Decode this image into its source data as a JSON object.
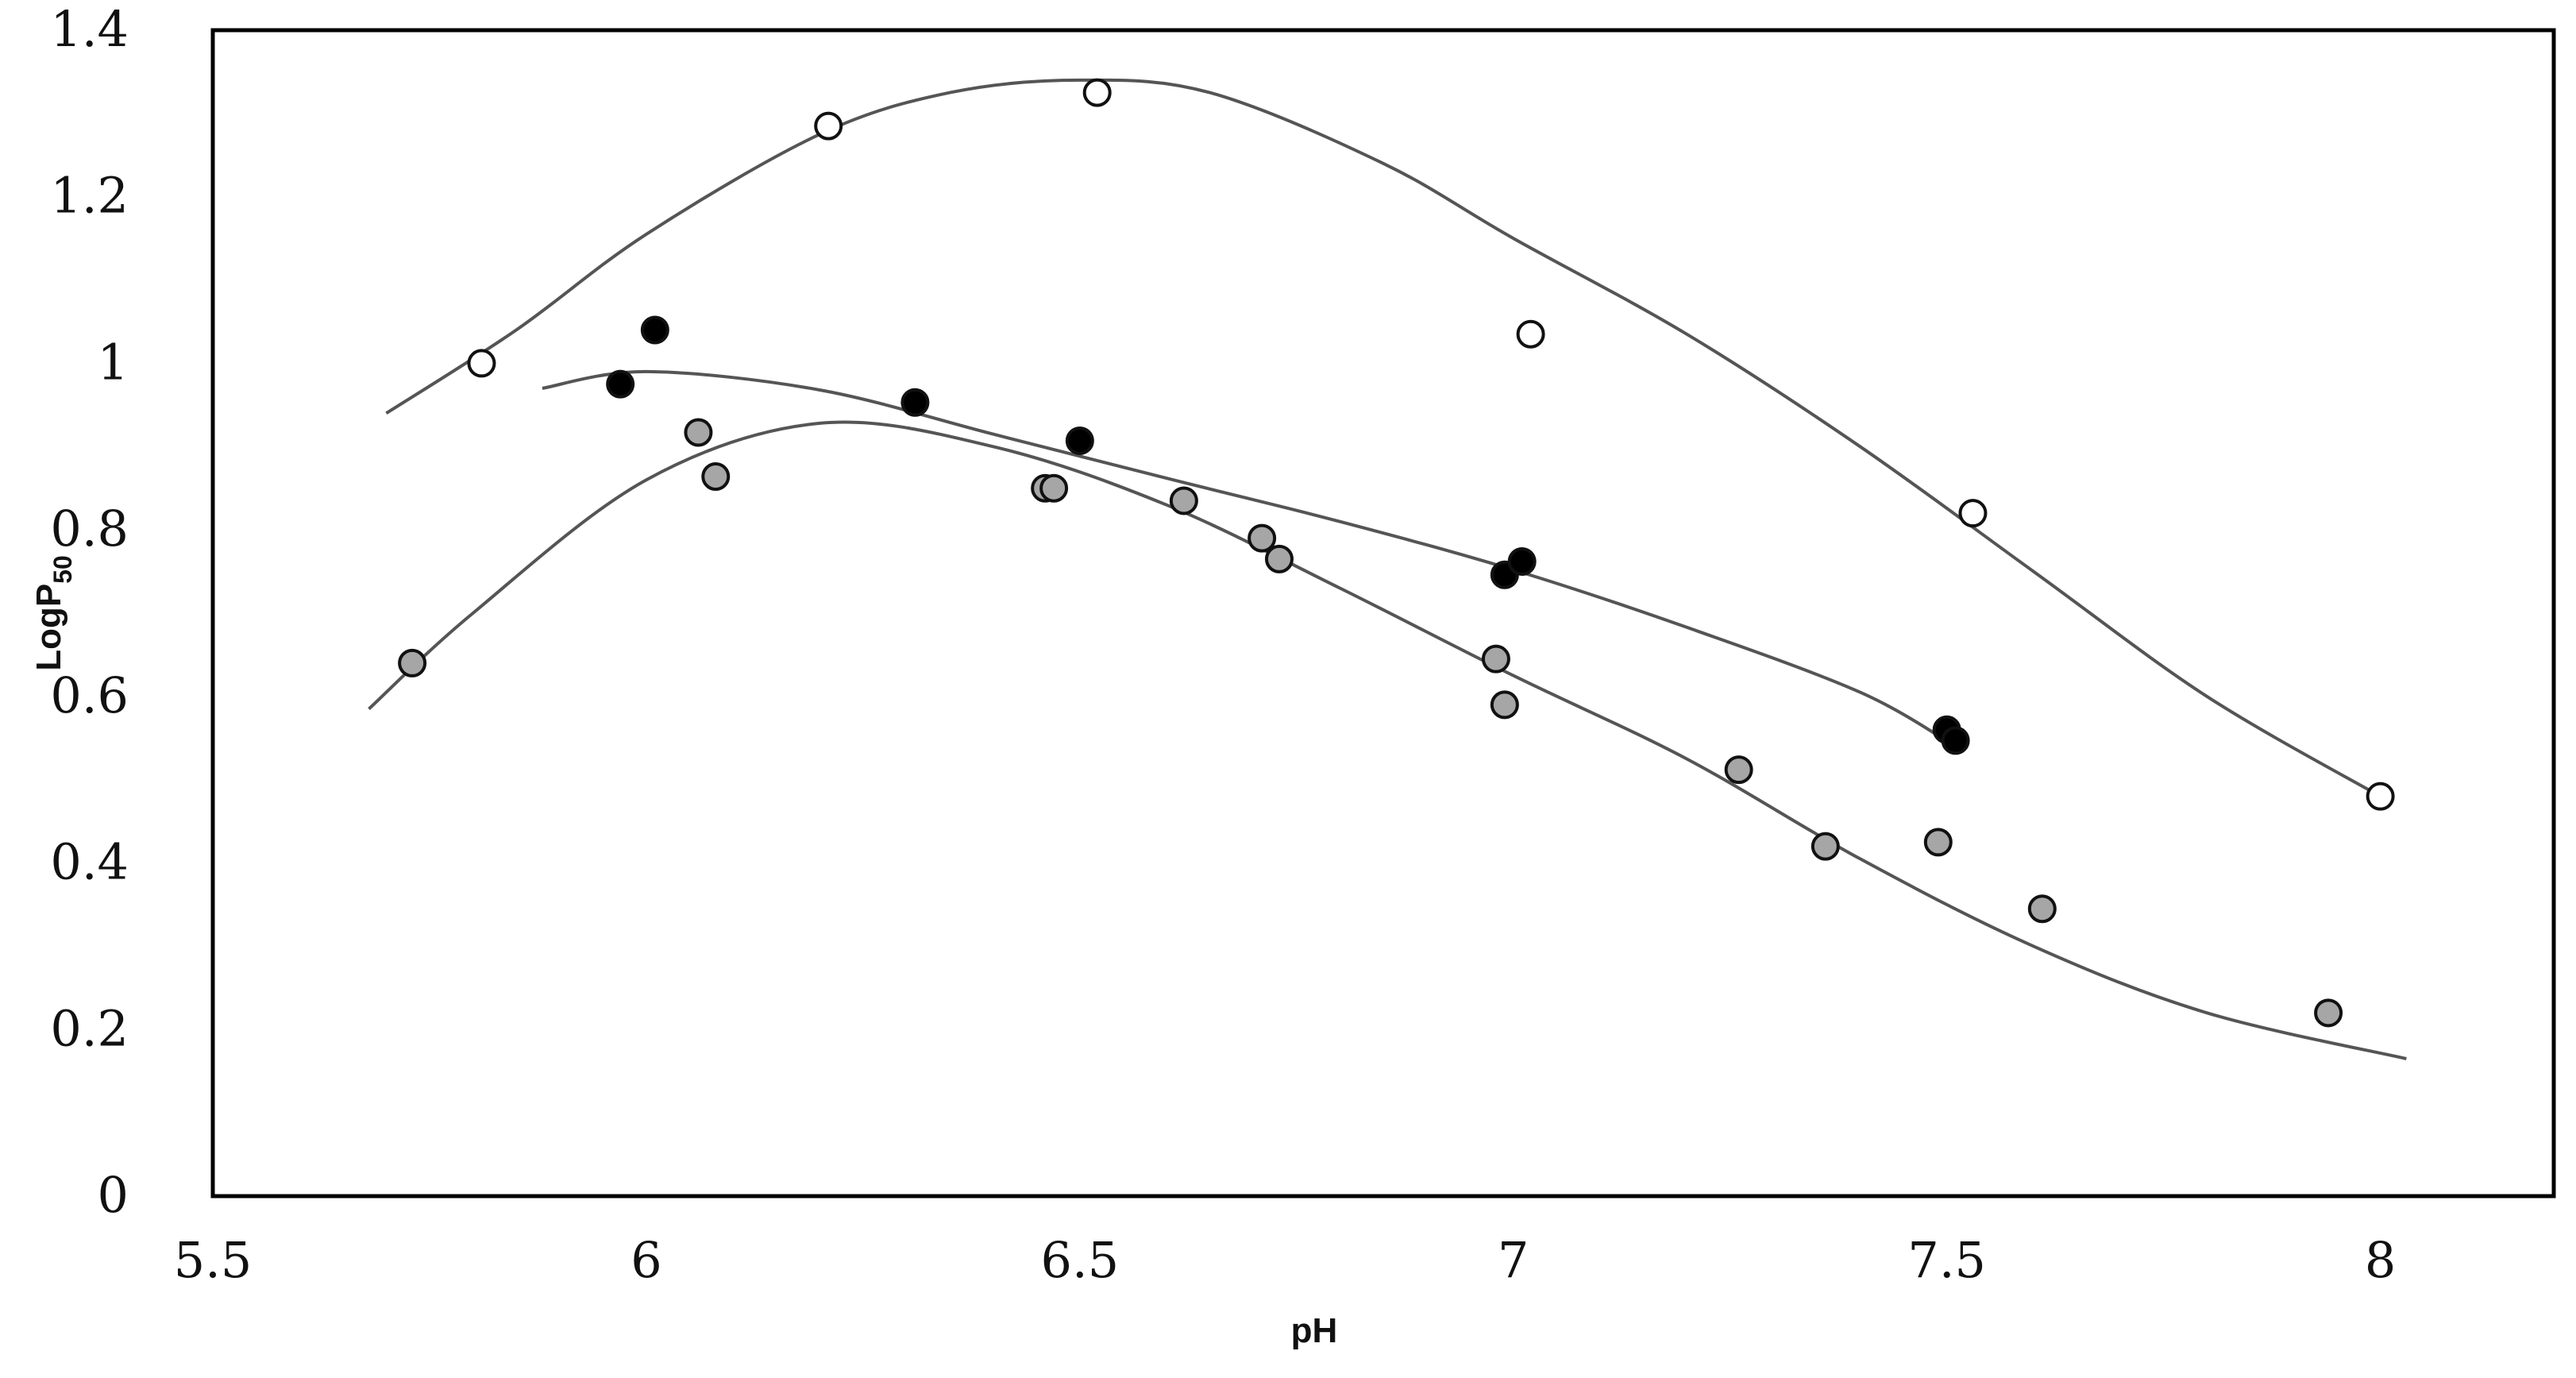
{
  "chart_data": {
    "type": "scatter",
    "title": "",
    "xlabel": "pH",
    "ylabel": "LogP",
    "ylabel_subscript": "50",
    "xlim": [
      5.5,
      8.2
    ],
    "ylim": [
      0,
      1.4
    ],
    "x_ticks": [
      {
        "value": 5.5,
        "label": "5.5"
      },
      {
        "value": 6,
        "label": "6"
      },
      {
        "value": 6.5,
        "label": "6.5"
      },
      {
        "value": 7,
        "label": "7"
      },
      {
        "value": 7.5,
        "label": "7.5"
      },
      {
        "value": 8,
        "label": "8"
      }
    ],
    "y_ticks": [
      {
        "value": 0,
        "label": "0"
      },
      {
        "value": 0.2,
        "label": "0.2"
      },
      {
        "value": 0.4,
        "label": "0.4"
      },
      {
        "value": 0.6,
        "label": "0.6"
      },
      {
        "value": 0.8,
        "label": "0.8"
      },
      {
        "value": 1,
        "label": "1"
      },
      {
        "value": 1.2,
        "label": "1.2"
      },
      {
        "value": 1.4,
        "label": "1.4"
      }
    ],
    "grid": false,
    "legend": "none",
    "series": [
      {
        "marker": "open-circle",
        "fill": "#ffffff",
        "points": [
          [
            5.81,
            1.0
          ],
          [
            6.21,
            1.285
          ],
          [
            6.52,
            1.325
          ],
          [
            7.02,
            1.035
          ],
          [
            7.53,
            0.82
          ],
          [
            8.0,
            0.48
          ]
        ],
        "curve": [
          [
            5.7,
            0.94
          ],
          [
            5.85,
            1.04
          ],
          [
            6.0,
            1.155
          ],
          [
            6.2,
            1.275
          ],
          [
            6.35,
            1.325
          ],
          [
            6.5,
            1.34
          ],
          [
            6.65,
            1.325
          ],
          [
            6.85,
            1.24
          ],
          [
            7.0,
            1.15
          ],
          [
            7.2,
            1.035
          ],
          [
            7.4,
            0.9
          ],
          [
            7.6,
            0.75
          ],
          [
            7.8,
            0.6
          ],
          [
            8.0,
            0.48
          ]
        ]
      },
      {
        "marker": "filled-circle",
        "fill": "#000000",
        "points": [
          [
            5.97,
            0.975
          ],
          [
            6.01,
            1.04
          ],
          [
            6.31,
            0.953
          ],
          [
            6.5,
            0.907
          ],
          [
            6.99,
            0.746
          ],
          [
            7.01,
            0.762
          ],
          [
            7.5,
            0.56
          ],
          [
            7.51,
            0.547
          ]
        ],
        "curve": [
          [
            5.88,
            0.97
          ],
          [
            6.0,
            0.99
          ],
          [
            6.2,
            0.968
          ],
          [
            6.4,
            0.915
          ],
          [
            6.6,
            0.862
          ],
          [
            6.8,
            0.81
          ],
          [
            7.0,
            0.752
          ],
          [
            7.2,
            0.683
          ],
          [
            7.4,
            0.605
          ],
          [
            7.51,
            0.54
          ]
        ]
      },
      {
        "marker": "grey-circle",
        "fill": "#a6a6a6",
        "points": [
          [
            5.73,
            0.64
          ],
          [
            6.06,
            0.917
          ],
          [
            6.08,
            0.864
          ],
          [
            6.46,
            0.85
          ],
          [
            6.47,
            0.85
          ],
          [
            6.62,
            0.835
          ],
          [
            6.71,
            0.79
          ],
          [
            6.73,
            0.765
          ],
          [
            6.98,
            0.645
          ],
          [
            6.99,
            0.59
          ],
          [
            7.26,
            0.512
          ],
          [
            7.36,
            0.42
          ],
          [
            7.49,
            0.425
          ],
          [
            7.61,
            0.345
          ],
          [
            7.94,
            0.22
          ]
        ],
        "curve": [
          [
            5.68,
            0.585
          ],
          [
            5.8,
            0.7
          ],
          [
            6.0,
            0.86
          ],
          [
            6.2,
            0.928
          ],
          [
            6.4,
            0.9
          ],
          [
            6.6,
            0.83
          ],
          [
            6.8,
            0.73
          ],
          [
            7.0,
            0.625
          ],
          [
            7.2,
            0.525
          ],
          [
            7.4,
            0.405
          ],
          [
            7.6,
            0.3
          ],
          [
            7.8,
            0.22
          ],
          [
            8.03,
            0.165
          ]
        ]
      }
    ]
  }
}
